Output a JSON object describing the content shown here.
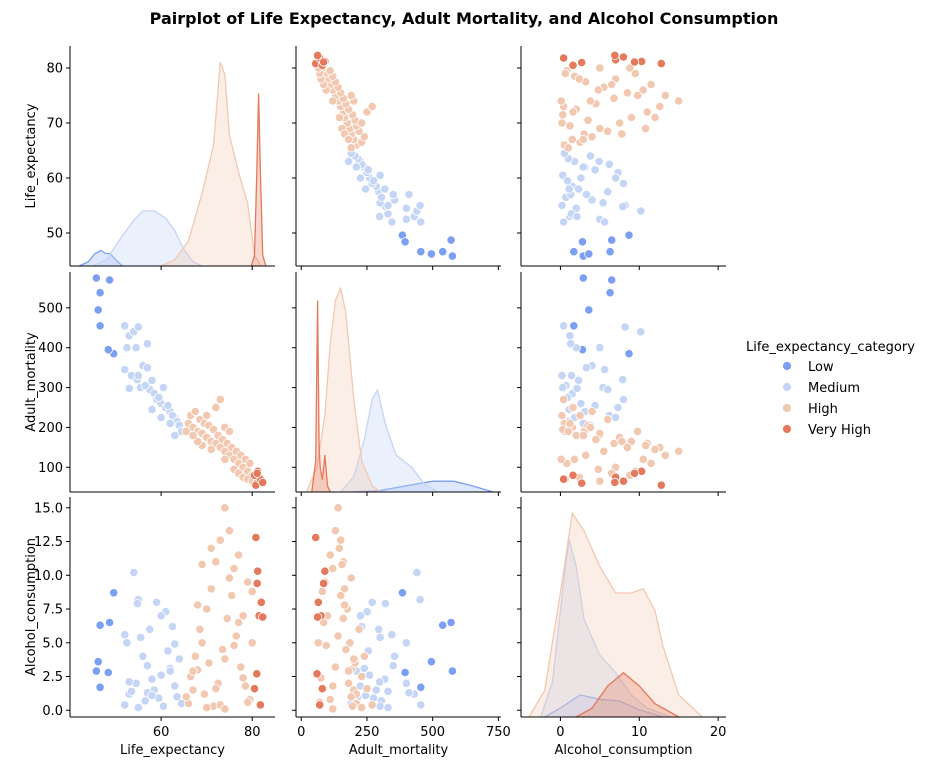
{
  "chart_data": {
    "type": "scatter",
    "title": "Pairplot of Life Expectancy, Adult Mortality, and Alcohol Consumption",
    "variables": [
      "Life_expectancy",
      "Adult_mortality",
      "Alcohol_consumption"
    ],
    "axis_labels": {
      "Life_expectancy": "Life_expectancy",
      "Adult_mortality": "Adult_mortality",
      "Alcohol_consumption": "Alcohol_consumption"
    },
    "ranges": {
      "Life_expectancy": [
        40,
        85
      ],
      "Adult_mortality": [
        -20,
        760
      ],
      "Alcohol_consumption": [
        -5,
        21
      ]
    },
    "y_ranges": {
      "Life_expectancy": [
        44,
        84
      ],
      "Adult_mortality": [
        38,
        590
      ],
      "Alcohol_consumption": [
        -0.5,
        15.8
      ]
    },
    "ticks": {
      "Life_expectancy": [
        60,
        80
      ],
      "Adult_mortality": [
        0,
        250,
        500,
        750
      ],
      "Alcohol_consumption": [
        0,
        10,
        20
      ]
    },
    "y_ticks": {
      "Life_expectancy": [
        50,
        60,
        70,
        80
      ],
      "Adult_mortality": [
        100,
        200,
        300,
        400,
        500
      ],
      "Alcohol_consumption": [
        0.0,
        2.5,
        5.0,
        7.5,
        10.0,
        12.5,
        15.0
      ]
    },
    "legend": {
      "title": "Life_expectancy_category",
      "placement": "right"
    },
    "series": [
      {
        "name": "Low",
        "color": "#7b9ff2",
        "points": [
          [
            45.8,
            575,
            2.9
          ],
          [
            46.6,
            538,
            6.3
          ],
          [
            46.6,
            455,
            1.7
          ],
          [
            46.2,
            495,
            3.6
          ],
          [
            48.7,
            570,
            6.5
          ],
          [
            49.6,
            385,
            8.7
          ],
          [
            48.4,
            395,
            2.8
          ]
        ]
      },
      {
        "name": "Medium",
        "color": "#c4d5f5",
        "points": [
          [
            52.0,
            455,
            0.4
          ],
          [
            53.0,
            430,
            1.2
          ],
          [
            54.0,
            440,
            10.2
          ],
          [
            55.0,
            452,
            8.2
          ],
          [
            52.5,
            400,
            5.0
          ],
          [
            54.5,
            400,
            2.0
          ],
          [
            56.0,
            355,
            4.0
          ],
          [
            57.0,
            350,
            3.3
          ],
          [
            53.5,
            330,
            1.4
          ],
          [
            54.8,
            320,
            7.9
          ],
          [
            55.5,
            300,
            5.4
          ],
          [
            57.5,
            295,
            6.0
          ],
          [
            58.5,
            285,
            1.5
          ],
          [
            59.0,
            270,
            8.0
          ],
          [
            60.0,
            260,
            2.6
          ],
          [
            61.0,
            250,
            7.3
          ],
          [
            62.0,
            240,
            3.1
          ],
          [
            63.0,
            225,
            1.8
          ],
          [
            56.5,
            305,
            0.7
          ],
          [
            58.0,
            318,
            2.3
          ],
          [
            60.5,
            300,
            0.3
          ],
          [
            61.5,
            255,
            4.4
          ],
          [
            62.5,
            230,
            6.2
          ],
          [
            63.5,
            215,
            1.0
          ],
          [
            64.0,
            205,
            3.8
          ],
          [
            59.5,
            275,
            0.9
          ],
          [
            52.0,
            345,
            5.6
          ],
          [
            55.0,
            330,
            0.2
          ],
          [
            57.0,
            410,
            1.3
          ],
          [
            53.0,
            298,
            2.1
          ],
          [
            60.0,
            225,
            7.0
          ],
          [
            64.5,
            190,
            0.5
          ],
          [
            62.0,
            210,
            2.9
          ],
          [
            58.0,
            245,
            1.1
          ],
          [
            63.0,
            180,
            4.9
          ]
        ]
      },
      {
        "name": "High",
        "color": "#f2c8b1",
        "points": [
          [
            66.0,
            210,
            0.5
          ],
          [
            67.0,
            200,
            1.5
          ],
          [
            68.0,
            190,
            3.0
          ],
          [
            69.0,
            185,
            5.0
          ],
          [
            70.0,
            175,
            7.5
          ],
          [
            71.0,
            165,
            9.0
          ],
          [
            72.0,
            160,
            11.0
          ],
          [
            73.0,
            150,
            12.6
          ],
          [
            74.0,
            140,
            15.0
          ],
          [
            75.0,
            130,
            13.3
          ],
          [
            76.0,
            120,
            10.5
          ],
          [
            77.0,
            110,
            11.5
          ],
          [
            78.0,
            100,
            7.0
          ],
          [
            79.0,
            90,
            9.5
          ],
          [
            80.0,
            80,
            8.8
          ],
          [
            66.5,
            230,
            2.5
          ],
          [
            67.5,
            240,
            4.0
          ],
          [
            68.5,
            220,
            6.0
          ],
          [
            69.5,
            210,
            1.2
          ],
          [
            70.5,
            205,
            3.5
          ],
          [
            71.5,
            195,
            0.3
          ],
          [
            72.5,
            180,
            2.0
          ],
          [
            73.5,
            170,
            4.5
          ],
          [
            74.5,
            160,
            6.8
          ],
          [
            75.5,
            150,
            8.5
          ],
          [
            76.5,
            140,
            5.5
          ],
          [
            77.5,
            130,
            3.2
          ],
          [
            78.5,
            120,
            1.8
          ],
          [
            79.5,
            110,
            0.8
          ],
          [
            65.5,
            190,
            1.0
          ],
          [
            70.0,
            230,
            0.2
          ],
          [
            72.0,
            250,
            1.6
          ],
          [
            73.0,
            270,
            0.4
          ],
          [
            74.0,
            200,
            3.8
          ],
          [
            75.0,
            190,
            9.8
          ],
          [
            71.0,
            145,
            12.0
          ],
          [
            69.0,
            155,
            10.8
          ],
          [
            68.0,
            165,
            7.8
          ],
          [
            76.0,
            95,
            4.8
          ],
          [
            77.0,
            85,
            6.5
          ],
          [
            78.0,
            75,
            2.4
          ],
          [
            79.0,
            70,
            0.6
          ],
          [
            80.0,
            65,
            5.0
          ],
          [
            67.0,
            180,
            2.9
          ],
          [
            74.0,
            120,
            0.1
          ]
        ]
      },
      {
        "name": "Very High",
        "color": "#e4795c",
        "points": [
          [
            81.0,
            60,
            2.7
          ],
          [
            81.5,
            75,
            7.0
          ],
          [
            82.0,
            65,
            8.0
          ],
          [
            81.2,
            90,
            10.3
          ],
          [
            80.8,
            55,
            12.8
          ],
          [
            81.8,
            70,
            0.4
          ],
          [
            80.5,
            80,
            1.6
          ],
          [
            82.3,
            62,
            6.9
          ],
          [
            81.1,
            85,
            9.4
          ]
        ]
      }
    ],
    "kde": {
      "Life_expectancy": [
        {
          "name": "Low",
          "color": "#7b9ff2",
          "fill": "rgba(123,159,242,0.25)",
          "line": [
            [
              42,
              0.0
            ],
            [
              44,
              0.02
            ],
            [
              45.5,
              0.06
            ],
            [
              46.8,
              0.075
            ],
            [
              47.8,
              0.06
            ],
            [
              48.8,
              0.06
            ],
            [
              50,
              0.03
            ],
            [
              51.5,
              0.0
            ]
          ]
        },
        {
          "name": "Medium",
          "color": "#c4d5f5",
          "fill": "rgba(196,213,245,0.35)",
          "line": [
            [
              45,
              0.0
            ],
            [
              48,
              0.03
            ],
            [
              51,
              0.13
            ],
            [
              54,
              0.22
            ],
            [
              56,
              0.265
            ],
            [
              58.5,
              0.265
            ],
            [
              61,
              0.23
            ],
            [
              63,
              0.17
            ],
            [
              65,
              0.08
            ],
            [
              67,
              0.02
            ],
            [
              69,
              0.0
            ]
          ]
        },
        {
          "name": "High",
          "color": "#f2c8b1",
          "fill": "rgba(242,200,177,0.30)",
          "line": [
            [
              60,
              0.0
            ],
            [
              63,
              0.03
            ],
            [
              66,
              0.12
            ],
            [
              69,
              0.35
            ],
            [
              71.5,
              0.58
            ],
            [
              73,
              0.98
            ],
            [
              74,
              0.92
            ],
            [
              75,
              0.63
            ],
            [
              77,
              0.45
            ],
            [
              79,
              0.3
            ],
            [
              80.5,
              0.05
            ],
            [
              82,
              0.0
            ]
          ]
        },
        {
          "name": "Very High",
          "color": "#e4795c",
          "fill": "rgba(228,121,92,0.30)",
          "line": [
            [
              79.8,
              0.0
            ],
            [
              80.5,
              0.05
            ],
            [
              81.0,
              0.45
            ],
            [
              81.4,
              0.83
            ],
            [
              81.8,
              0.45
            ],
            [
              82.3,
              0.05
            ],
            [
              83,
              0.0
            ]
          ]
        }
      ],
      "Adult_mortality": [
        {
          "name": "Low",
          "color": "#7b9ff2",
          "fill": "rgba(123,159,242,0.25)",
          "line": [
            [
              200,
              0.0
            ],
            [
              300,
              0.005
            ],
            [
              400,
              0.02
            ],
            [
              500,
              0.035
            ],
            [
              580,
              0.035
            ],
            [
              650,
              0.02
            ],
            [
              730,
              0.0
            ]
          ]
        },
        {
          "name": "Medium",
          "color": "#c4d5f5",
          "fill": "rgba(196,213,245,0.35)",
          "line": [
            [
              150,
              0.0
            ],
            [
              200,
              0.05
            ],
            [
              240,
              0.17
            ],
            [
              270,
              0.3
            ],
            [
              290,
              0.33
            ],
            [
              320,
              0.22
            ],
            [
              360,
              0.12
            ],
            [
              420,
              0.08
            ],
            [
              470,
              0.025
            ],
            [
              520,
              0.0
            ]
          ]
        },
        {
          "name": "High",
          "color": "#f2c8b1",
          "fill": "rgba(242,200,177,0.30)",
          "line": [
            [
              20,
              0.0
            ],
            [
              60,
              0.08
            ],
            [
              90,
              0.25
            ],
            [
              110,
              0.48
            ],
            [
              130,
              0.62
            ],
            [
              150,
              0.66
            ],
            [
              170,
              0.58
            ],
            [
              200,
              0.3
            ],
            [
              230,
              0.1
            ],
            [
              270,
              0.02
            ],
            [
              300,
              0.0
            ]
          ]
        },
        {
          "name": "Very High",
          "color": "#e4795c",
          "fill": "rgba(228,121,92,0.30)",
          "line": [
            [
              40,
              0.0
            ],
            [
              55,
              0.1
            ],
            [
              62,
              0.62
            ],
            [
              68,
              0.15
            ],
            [
              72,
              0.08
            ],
            [
              80,
              0.04
            ],
            [
              90,
              0.12
            ],
            [
              100,
              0.02
            ],
            [
              110,
              0.0
            ]
          ]
        }
      ],
      "Alcohol_consumption": [
        {
          "name": "Low",
          "color": "#7b9ff2",
          "fill": "rgba(123,159,242,0.25)",
          "line": [
            [
              -2,
              0.0
            ],
            [
              0,
              0.01
            ],
            [
              2.5,
              0.025
            ],
            [
              5,
              0.02
            ],
            [
              7.5,
              0.018
            ],
            [
              10,
              0.008
            ],
            [
              13,
              0.0
            ]
          ]
        },
        {
          "name": "Medium",
          "color": "#c4d5f5",
          "fill": "rgba(196,213,245,0.35)",
          "line": [
            [
              -2.5,
              0.0
            ],
            [
              -1,
              0.04
            ],
            [
              0.5,
              0.16
            ],
            [
              1.1,
              0.2
            ],
            [
              2,
              0.17
            ],
            [
              3,
              0.11
            ],
            [
              5,
              0.07
            ],
            [
              7,
              0.05
            ],
            [
              9,
              0.025
            ],
            [
              11,
              0.01
            ],
            [
              14,
              0.0
            ]
          ]
        },
        {
          "name": "High",
          "color": "#f2c8b1",
          "fill": "rgba(242,200,177,0.30)",
          "line": [
            [
              -4,
              0.0
            ],
            [
              -2,
              0.03
            ],
            [
              0,
              0.14
            ],
            [
              1.5,
              0.23
            ],
            [
              3,
              0.21
            ],
            [
              5,
              0.17
            ],
            [
              7,
              0.14
            ],
            [
              9,
              0.14
            ],
            [
              10.5,
              0.145
            ],
            [
              12,
              0.12
            ],
            [
              13,
              0.08
            ],
            [
              15,
              0.025
            ],
            [
              18,
              0.0
            ]
          ]
        },
        {
          "name": "Very High",
          "color": "#e4795c",
          "fill": "rgba(228,121,92,0.30)",
          "line": [
            [
              2,
              0.0
            ],
            [
              4,
              0.01
            ],
            [
              6,
              0.035
            ],
            [
              8,
              0.05
            ],
            [
              10,
              0.035
            ],
            [
              12,
              0.015
            ],
            [
              15,
              0.0
            ]
          ]
        }
      ]
    }
  }
}
